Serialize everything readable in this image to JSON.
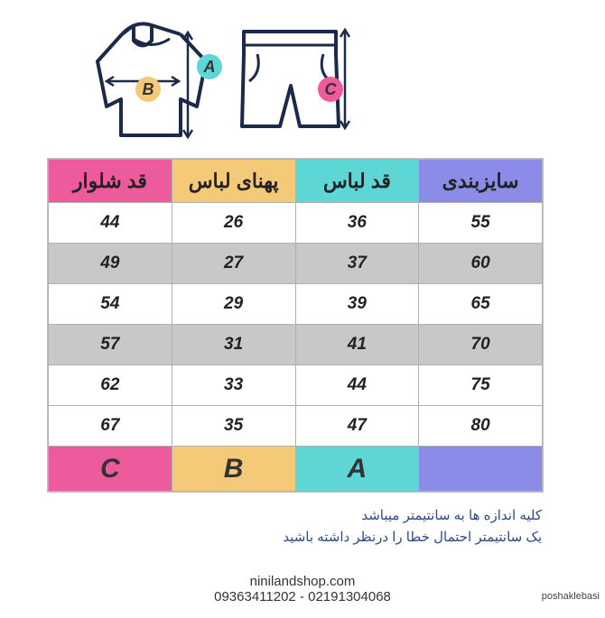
{
  "markers": {
    "a": "A",
    "b": "B",
    "c": "C"
  },
  "table": {
    "headers": {
      "col1": {
        "text": "قد شلوار",
        "bg": "#ed5b9c"
      },
      "col2": {
        "text": "پهنای لباس",
        "bg": "#f4c978"
      },
      "col3": {
        "text": "قد لباس",
        "bg": "#5fd6d6"
      },
      "col4": {
        "text": "سایزبندی",
        "bg": "#8b8be8"
      }
    },
    "rows": [
      {
        "c1": "44",
        "c2": "26",
        "c3": "36",
        "c4": "55",
        "alt": false
      },
      {
        "c1": "49",
        "c2": "27",
        "c3": "37",
        "c4": "60",
        "alt": true
      },
      {
        "c1": "54",
        "c2": "29",
        "c3": "39",
        "c4": "65",
        "alt": false
      },
      {
        "c1": "57",
        "c2": "31",
        "c3": "41",
        "c4": "70",
        "alt": true
      },
      {
        "c1": "62",
        "c2": "33",
        "c3": "44",
        "c4": "75",
        "alt": false
      },
      {
        "c1": "67",
        "c2": "35",
        "c3": "47",
        "c4": "80",
        "alt": false
      }
    ],
    "footer": {
      "col1": {
        "text": "C",
        "bg": "#ed5b9c"
      },
      "col2": {
        "text": "B",
        "bg": "#f4c978"
      },
      "col3": {
        "text": "A",
        "bg": "#5fd6d6"
      },
      "col4": {
        "text": "",
        "bg": "#8b8be8"
      }
    }
  },
  "notes": {
    "line1": "کلیه اندازه ها به سانتیمتر میباشد",
    "line2": "یک سانتیمتر احتمال خطا را درنظر داشته باشید"
  },
  "footer": {
    "website": "ninilandshop.com",
    "phones": "09363411202 - 02191304068"
  },
  "watermark": "poshaklebasi",
  "colors": {
    "pink": "#ed5b9c",
    "orange": "#f4c978",
    "teal": "#5fd6d6",
    "purple": "#8b8be8",
    "alt_row": "#c8c8c8",
    "note_text": "#2a4a8a"
  }
}
